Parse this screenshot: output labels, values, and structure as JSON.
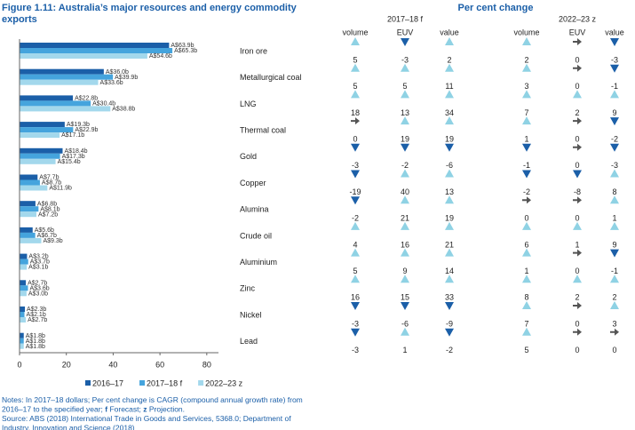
{
  "chart_data": {
    "type": "bar",
    "orientation": "horizontal",
    "title": [
      "Figure 1.11: Australia’s major resources and energy commodity",
      "exports"
    ],
    "categories": [
      "Iron ore",
      "Metallurgical coal",
      "LNG",
      "Thermal coal",
      "Gold",
      "Copper",
      "Alumina",
      "Crude oil",
      "Aluminium",
      "Zinc",
      "Nickel",
      "Lead"
    ],
    "series": [
      {
        "name": "2016–17",
        "color": "#1b5fa8",
        "values": [
          63.9,
          36.0,
          22.8,
          19.3,
          18.4,
          7.7,
          6.8,
          5.6,
          3.2,
          2.7,
          2.3,
          1.8
        ],
        "value_labels": [
          "A$63.9b",
          "A$36.0b",
          "A$22.8b",
          "A$19.3b",
          "A$18.4b",
          "A$7.7b",
          "A$6.8b",
          "A$5.6b",
          "A$3.2b",
          "A$2.7b",
          "A$2.3b",
          "A$1.8b"
        ]
      },
      {
        "name": "2017–18 f",
        "color": "#45a4dd",
        "values": [
          65.3,
          39.9,
          30.4,
          22.9,
          17.3,
          8.7,
          8.1,
          6.7,
          3.7,
          3.6,
          2.1,
          1.8
        ],
        "value_labels": [
          "A$65.3b",
          "A$39.9b",
          "A$30.4b",
          "A$22.9b",
          "A$17.3b",
          "A$8.7b",
          "A$8.1b",
          "A$6.7b",
          "A$3.7b",
          "A$3.6b",
          "A$2.1b",
          "A$1.8b"
        ]
      },
      {
        "name": "2022–23 z",
        "color": "#a3d8ec",
        "values": [
          54.6,
          33.6,
          38.8,
          17.1,
          15.4,
          11.9,
          7.2,
          9.3,
          3.1,
          3.0,
          2.7,
          1.8
        ],
        "value_labels": [
          "A$54.6b",
          "A$33.6b",
          "A$38.8b",
          "A$17.1b",
          "A$15.4b",
          "A$11.9b",
          "A$7.2b",
          "A$9.3b",
          "A$3.1b",
          "A$3.0b",
          "A$2.7b",
          "A$1.8b"
        ]
      }
    ],
    "xlim": [
      0,
      85
    ],
    "xticks": [
      0,
      20,
      40,
      60,
      80
    ],
    "legend": "bottom"
  },
  "table": {
    "title": "Per cent change",
    "groups": [
      {
        "name": "2017–18 f",
        "columns": [
          "volume",
          "EUV",
          "value"
        ]
      },
      {
        "name": "2022–23 z",
        "columns": [
          "volume",
          "EUV",
          "value"
        ]
      }
    ],
    "rows": [
      [
        5,
        -3,
        2,
        2,
        0,
        -3
      ],
      [
        5,
        5,
        11,
        3,
        0,
        -1
      ],
      [
        18,
        13,
        34,
        7,
        2,
        9
      ],
      [
        0,
        19,
        19,
        1,
        0,
        -2
      ],
      [
        -3,
        -2,
        -6,
        -1,
        0,
        -3
      ],
      [
        -19,
        40,
        13,
        -2,
        -8,
        8
      ],
      [
        -2,
        21,
        19,
        0,
        0,
        1
      ],
      [
        4,
        16,
        21,
        6,
        1,
        9
      ],
      [
        5,
        9,
        14,
        1,
        0,
        -1
      ],
      [
        16,
        15,
        33,
        8,
        2,
        2
      ],
      [
        -3,
        -6,
        -9,
        7,
        0,
        3
      ],
      [
        -3,
        1,
        -2,
        5,
        0,
        0
      ]
    ],
    "colors": {
      "up": "#8fd2e4",
      "down": "#1b5fa8",
      "flat": "#555555"
    }
  },
  "notes": [
    [
      {
        "text": "Notes: In 2017–18 dollars; Per cent change is CAGR (compound annual growth rate) from"
      }
    ],
    [
      {
        "text": "2016–17 to the specified year; "
      },
      {
        "text": "f",
        "bold": true
      },
      {
        "text": " Forecast; "
      },
      {
        "text": "z",
        "bold": true
      },
      {
        "text": " Projection."
      }
    ],
    [
      {
        "text": "Source: ABS (2018) International Trade in Goods and Services, 5368.0; Department of"
      }
    ],
    [
      {
        "text": "Industry, Innovation and Science (2018)"
      }
    ]
  ]
}
